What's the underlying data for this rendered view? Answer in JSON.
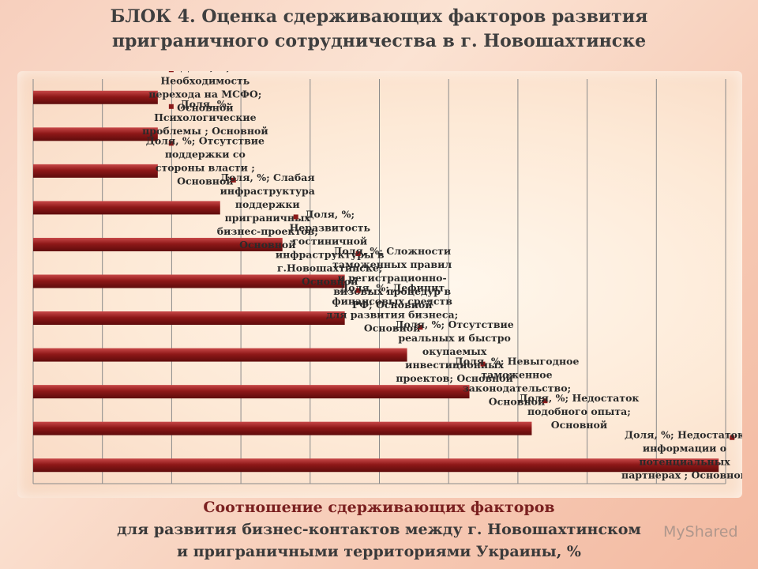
{
  "header": {
    "title_line1": "БЛОК 4. Оценка сдерживающих факторов развития",
    "title_line2": "приграничного сотрудничества в г. Новошахтинске"
  },
  "caption": {
    "line1": "Соотношение сдерживающих факторов",
    "line2": "для развития бизнес-контактов между г. Новошахтинском",
    "line3": "и приграничными территориями Украины, %"
  },
  "watermark": "MyShared",
  "chart_data": {
    "type": "bar",
    "orientation": "horizontal",
    "series": [
      {
        "name": "Доля, %",
        "color": "#8b1a1a",
        "values": [
          18,
          18,
          18,
          27,
          36,
          45,
          45,
          54,
          63,
          72,
          99
        ]
      }
    ],
    "categories": [
      "Необходимость перехода на МСФО",
      "Психологические проблемы",
      "Отсутствие поддержки со стороны власти",
      "Слабая инфраструктура поддержки приграничных бизнес-проектов",
      "Неразвитость гостиничной инфраструктуры в г.Новошахтинске",
      "Сложности таможенных правил и регистрационно-визовых процедур в РФ",
      "Дефицит финансовых средств для развития бизнеса",
      "Отсутствие реальных и быстро окупаемых инвестиционных проектов",
      "Невыгодное таможенное законодательство",
      "Недостаток подобного опыта",
      "Недостаток информации о потенциальных партнерах"
    ],
    "data_labels": [
      [
        "Доля, %;",
        "Необходимость",
        "перехода на МСФО;",
        "Основной"
      ],
      [
        "Доля, %;",
        "Психологические",
        "проблемы ; Основной"
      ],
      [
        "Доля, %; Отсутствие",
        "поддержки со",
        "стороны власти ;",
        "Основной"
      ],
      [
        "Доля, %; Слабая",
        "инфраструктура",
        "поддержки",
        "приграничных",
        "бизнес-проектов;",
        "Основной"
      ],
      [
        "Доля, %;",
        "Неразвитость",
        "гостиничной",
        "инфраструктуры в",
        "г.Новошахтинске;",
        "Основной"
      ],
      [
        "Доля, %; Сложности",
        "таможенных правил",
        "и регистрационно-",
        "визовых процедур в",
        "РФ; Основной"
      ],
      [
        "Доля, %; Дефицит",
        "финансовых средств",
        "для развития бизнеса;",
        "Основной"
      ],
      [
        "Доля, %; Отсутствие",
        "реальных и быстро",
        "окупаемых",
        "инвестиционных",
        "проектов; Основной"
      ],
      [
        "Доля, %; Невыгодное",
        "таможенное",
        "законодательство;",
        "Основной"
      ],
      [
        "Доля, %; Недостаток",
        "подобного опыта;",
        "Основной"
      ],
      [
        "Доля, %; Недостаток",
        "информации о",
        "потенциальных",
        "партнерах ; Основной"
      ]
    ],
    "xlim": [
      0,
      100
    ],
    "grid": true,
    "legend": "none"
  }
}
